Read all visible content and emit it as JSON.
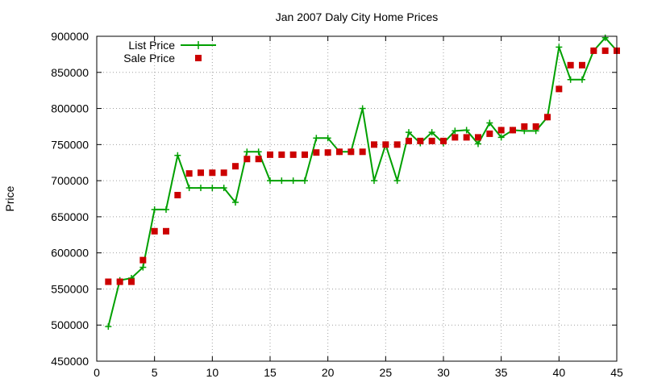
{
  "chart_data": {
    "type": "line",
    "title": "Jan 2007 Daly City Home Prices",
    "xlabel": "",
    "ylabel": "Price",
    "xlim": [
      0,
      45
    ],
    "ylim": [
      450000,
      900000
    ],
    "xticks": [
      0,
      5,
      10,
      15,
      20,
      25,
      30,
      35,
      40,
      45
    ],
    "yticks": [
      450000,
      500000,
      550000,
      600000,
      650000,
      700000,
      750000,
      800000,
      850000,
      900000
    ],
    "grid": true,
    "legend_position": "top-left",
    "x": [
      1,
      2,
      3,
      4,
      5,
      6,
      7,
      8,
      9,
      10,
      11,
      12,
      13,
      14,
      15,
      16,
      17,
      18,
      19,
      20,
      21,
      22,
      23,
      24,
      25,
      26,
      27,
      28,
      29,
      30,
      31,
      32,
      33,
      34,
      35,
      36,
      37,
      38,
      39,
      40,
      41,
      42,
      43,
      44,
      45
    ],
    "series": [
      {
        "name": "List Price",
        "style": "line+cross",
        "color": "#00a000",
        "values": [
          498000,
          562000,
          565000,
          580000,
          660000,
          660000,
          735000,
          690000,
          690000,
          690000,
          690000,
          670000,
          740000,
          740000,
          700000,
          700000,
          700000,
          700000,
          759000,
          759000,
          740000,
          740000,
          800000,
          700000,
          750000,
          700000,
          767000,
          752000,
          767000,
          752000,
          769000,
          770000,
          751000,
          780000,
          760000,
          770000,
          769000,
          769000,
          788000,
          885000,
          840000,
          840000,
          880000,
          898000,
          880000
        ]
      },
      {
        "name": "Sale Price",
        "style": "square-marker",
        "color": "#cc0000",
        "values": [
          560000,
          560000,
          560000,
          590000,
          630000,
          630000,
          680000,
          710000,
          711000,
          711000,
          711000,
          720000,
          730000,
          730000,
          736000,
          736000,
          736000,
          736000,
          739000,
          739000,
          740000,
          740000,
          740000,
          750000,
          750000,
          750000,
          755000,
          755000,
          755000,
          755000,
          760000,
          760000,
          760000,
          765000,
          770000,
          770000,
          775000,
          775000,
          788000,
          827000,
          860000,
          860000,
          880000,
          880000,
          880000
        ]
      }
    ]
  }
}
